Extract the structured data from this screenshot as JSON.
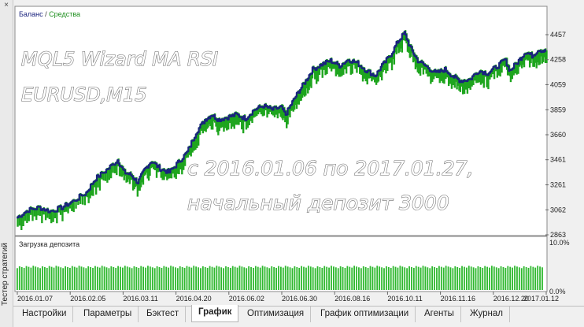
{
  "side_panel": {
    "label": "Тестер стратегий",
    "close_icon": "×"
  },
  "chart": {
    "legend": {
      "balance": "Баланс",
      "separator": " / ",
      "equity": "Средства"
    },
    "overlay": {
      "line1": "MQL5 Wizard MA RSI",
      "line2": "EURUSD,M15",
      "line3": "с 2016.01.06 по 2017.01.27,",
      "line4": "начальный депозит 3000"
    },
    "load_label": "Загрузка депозита",
    "load_max": "10.0%",
    "load_min": "0.0%",
    "colors": {
      "balance": "#1a237e",
      "equity": "#1ea51e",
      "load": "#2db82d",
      "legend_balance": "#1a237e",
      "legend_equity": "#1e8f1e"
    }
  },
  "chart_data": {
    "type": "line",
    "title": "",
    "y_ticks": [
      4457,
      4258,
      4059,
      3859,
      3660,
      3461,
      3261,
      3062,
      2863
    ],
    "ylim": [
      2863,
      4457
    ],
    "x_ticks": [
      "2016.01.07",
      "2016.02.05",
      "2016.03.11",
      "2016.04.20",
      "2016.06.02",
      "2016.06.30",
      "2016.08.16",
      "2016.10.11",
      "2016.11.16",
      "2016.12.20",
      "2017.01.12"
    ],
    "grid": false,
    "series": [
      {
        "name": "Баланс",
        "points": [
          [
            0.0,
            3000
          ],
          [
            0.025,
            3060
          ],
          [
            0.05,
            3080
          ],
          [
            0.075,
            3050
          ],
          [
            0.1,
            3080
          ],
          [
            0.125,
            3130
          ],
          [
            0.155,
            3200
          ],
          [
            0.175,
            3310
          ],
          [
            0.2,
            3380
          ],
          [
            0.225,
            3460
          ],
          [
            0.24,
            3360
          ],
          [
            0.255,
            3340
          ],
          [
            0.27,
            3280
          ],
          [
            0.285,
            3380
          ],
          [
            0.3,
            3450
          ],
          [
            0.32,
            3390
          ],
          [
            0.34,
            3360
          ],
          [
            0.36,
            3440
          ],
          [
            0.38,
            3520
          ],
          [
            0.4,
            3680
          ],
          [
            0.42,
            3780
          ],
          [
            0.435,
            3820
          ],
          [
            0.45,
            3780
          ],
          [
            0.47,
            3800
          ],
          [
            0.49,
            3820
          ],
          [
            0.51,
            3790
          ],
          [
            0.53,
            3860
          ],
          [
            0.55,
            3890
          ],
          [
            0.57,
            3860
          ],
          [
            0.59,
            3880
          ],
          [
            0.6,
            3820
          ],
          [
            0.615,
            3920
          ],
          [
            0.63,
            4010
          ],
          [
            0.645,
            4090
          ],
          [
            0.66,
            4180
          ],
          [
            0.68,
            4220
          ],
          [
            0.7,
            4250
          ],
          [
            0.72,
            4210
          ],
          [
            0.74,
            4260
          ],
          [
            0.76,
            4230
          ],
          [
            0.78,
            4170
          ],
          [
            0.8,
            4130
          ],
          [
            0.815,
            4210
          ],
          [
            0.835,
            4300
          ],
          [
            0.85,
            4400
          ],
          [
            0.865,
            4470
          ],
          [
            0.88,
            4340
          ],
          [
            0.895,
            4250
          ],
          [
            0.915,
            4200
          ],
          [
            0.935,
            4150
          ],
          [
            0.955,
            4180
          ],
          [
            0.975,
            4120
          ],
          [
            0.99,
            4090
          ],
          [
            1.01,
            4100
          ],
          [
            1.03,
            4170
          ],
          [
            1.05,
            4150
          ],
          [
            1.07,
            4200
          ],
          [
            1.09,
            4260
          ],
          [
            1.1,
            4170
          ],
          [
            1.12,
            4250
          ],
          [
            1.135,
            4320
          ],
          [
            1.15,
            4290
          ],
          [
            1.165,
            4340
          ],
          [
            1.18,
            4320
          ]
        ]
      },
      {
        "name": "Средства",
        "points": []
      }
    ],
    "deposit_load": {
      "label": "Загрузка депозита",
      "ylim": [
        0,
        10
      ],
      "typical_value": 4.5
    }
  },
  "tabs": [
    {
      "label": "Настройки",
      "active": false
    },
    {
      "label": "Параметры",
      "active": false
    },
    {
      "label": "Бэктест",
      "active": false
    },
    {
      "label": "График",
      "active": true
    },
    {
      "label": "Оптимизация",
      "active": false
    },
    {
      "label": "График оптимизации",
      "active": false
    },
    {
      "label": "Агенты",
      "active": false
    },
    {
      "label": "Журнал",
      "active": false
    }
  ]
}
